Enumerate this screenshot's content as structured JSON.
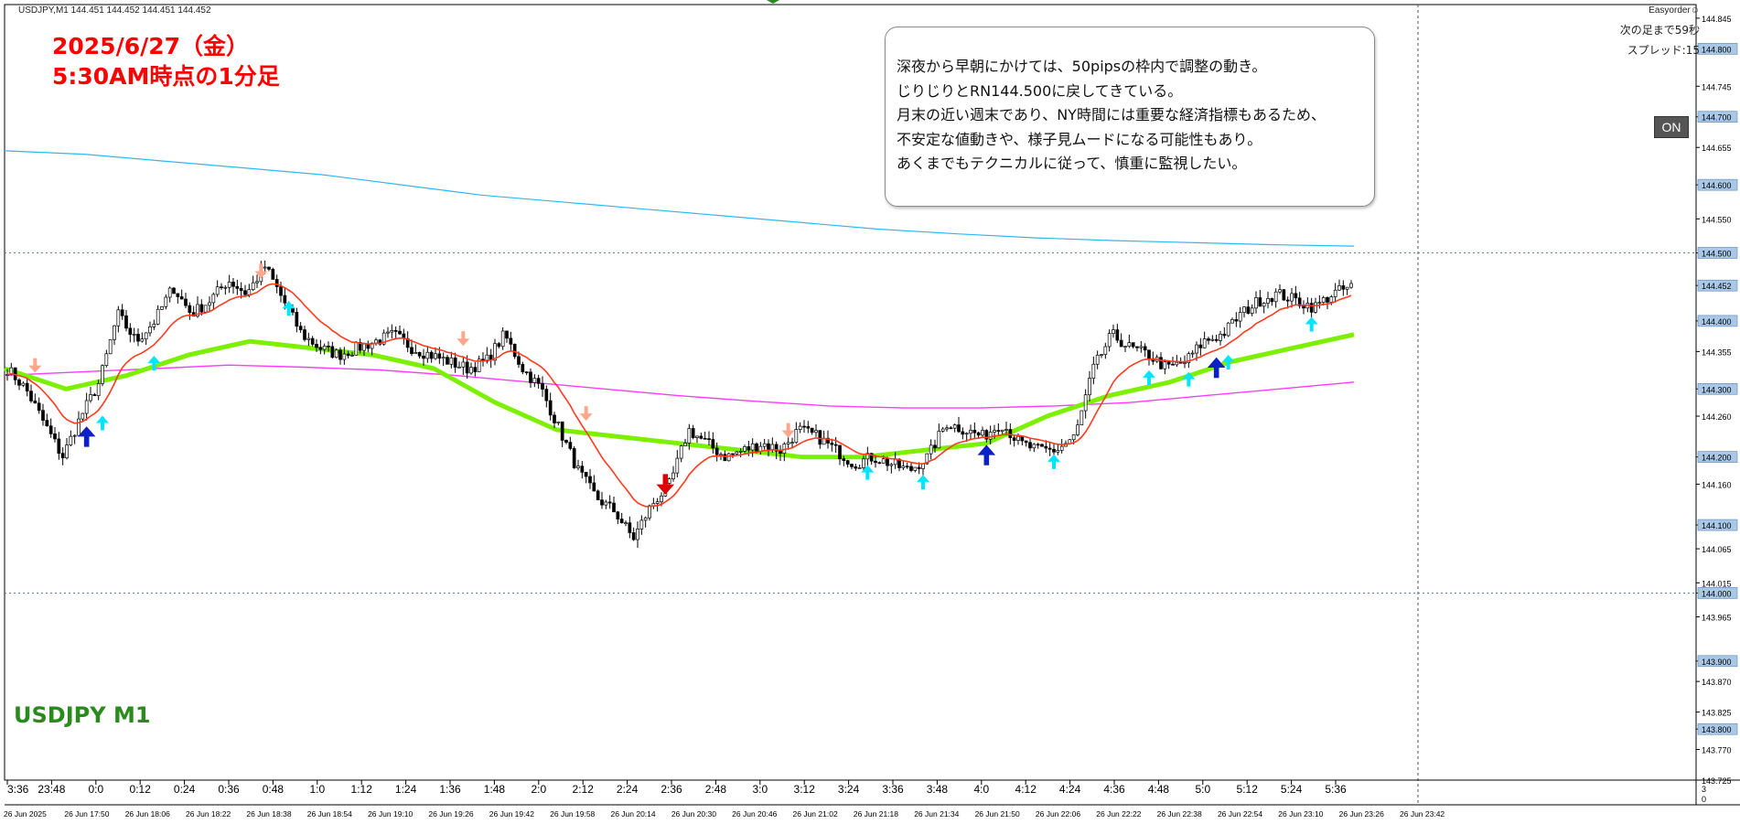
{
  "header": {
    "symbol_info": "USDJPY,M1  144.451 144.452 144.451 144.452",
    "ea_name": "Easyorder☺"
  },
  "title_line1": "2025/6/27（金）",
  "title_line2": "5:30AM時点の1分足",
  "symbol_label": "USDJPY M1",
  "info": {
    "next_bar": "次の足まで59秒",
    "spread": "スプレッド:15"
  },
  "on_button": "ON",
  "comment": [
    "深夜から早朝にかけては、50pipsの枠内で調整の動き。",
    "じりじりとRN144.500に戻してきている。",
    "月末の近い週末であり、NY時間には重要な経済指標もあるため、",
    "不安定な値動きや、様子見ムードになる可能性もあり。",
    "あくまでもテクニカルに従って、慎重に監視したい。"
  ],
  "colors": {
    "bull": "#000000",
    "red_ma": "#ff3b1f",
    "green_ma": "#7cf000",
    "magenta_ma": "#ff3cff",
    "blue_line": "#30b8f0",
    "arrow_up": "#00e5ff",
    "arrow_down": "#ffa78c",
    "arrow_up_big": "#0b20c8",
    "arrow_down_big": "#e00000"
  },
  "chart_data": {
    "type": "candlestick",
    "symbol": "USDJPY",
    "timeframe": "M1",
    "ylim": [
      143.725,
      144.865
    ],
    "y_ticks": [
      144.845,
      144.8,
      144.745,
      144.7,
      144.655,
      144.6,
      144.55,
      144.5,
      144.452,
      144.4,
      144.355,
      144.3,
      144.26,
      144.2,
      144.16,
      144.1,
      144.065,
      144.015,
      144.0,
      143.965,
      143.9,
      143.87,
      143.825,
      143.8,
      143.77,
      143.725
    ],
    "highlighted_ticks": [
      "144.800",
      "144.700",
      "144.600",
      "144.500",
      "144.452",
      "144.400",
      "144.300",
      "144.200",
      "144.100",
      "144.000",
      "143.900",
      "143.800"
    ],
    "dashed_levels": [
      144.5,
      144.0
    ],
    "x_labels_top": [
      "3:36",
      "23:48",
      "0:0",
      "0:12",
      "0:24",
      "0:36",
      "0:48",
      "1:0",
      "1:12",
      "1:24",
      "1:36",
      "1:48",
      "2:0",
      "2:12",
      "2:24",
      "2:36",
      "2:48",
      "3:0",
      "3:12",
      "3:24",
      "3:36",
      "3:48",
      "4:0",
      "4:12",
      "4:24",
      "4:36",
      "4:48",
      "5:0",
      "5:12",
      "5:24",
      "5:36"
    ],
    "x_labels_bottom": [
      "26 Jun 2025",
      "26 Jun 17:50",
      "26 Jun 18:06",
      "26 Jun 18:22",
      "26 Jun 18:38",
      "26 Jun 18:54",
      "26 Jun 19:10",
      "26 Jun 19:26",
      "26 Jun 19:42",
      "26 Jun 19:58",
      "26 Jun 20:14",
      "26 Jun 20:30",
      "26 Jun 20:46",
      "26 Jun 21:02",
      "26 Jun 21:18",
      "26 Jun 21:34",
      "26 Jun 21:50",
      "26 Jun 22:06",
      "26 Jun 22:22",
      "26 Jun 22:38",
      "26 Jun 22:54",
      "26 Jun 23:10",
      "26 Jun 23:26",
      "26 Jun 23:42"
    ],
    "subwindow_labels": [
      "3",
      "0"
    ],
    "price_path": [
      144.33,
      144.3,
      144.25,
      144.2,
      144.26,
      144.31,
      144.41,
      144.37,
      144.4,
      144.45,
      144.41,
      144.43,
      144.46,
      144.44,
      144.48,
      144.43,
      144.38,
      144.36,
      144.35,
      144.36,
      144.37,
      144.38,
      144.36,
      144.35,
      144.34,
      144.33,
      144.34,
      144.38,
      144.33,
      144.3,
      144.24,
      144.18,
      144.14,
      144.12,
      144.08,
      144.13,
      144.16,
      144.24,
      144.22,
      144.2,
      144.21,
      144.22,
      144.21,
      144.24,
      144.23,
      144.21,
      144.19,
      144.2,
      144.19,
      144.18,
      144.2,
      144.25,
      144.24,
      144.23,
      144.25,
      144.22,
      144.21,
      144.21,
      144.23,
      144.33,
      144.38,
      144.36,
      144.35,
      144.33,
      144.34,
      144.37,
      144.38,
      144.41,
      144.43,
      144.44,
      144.43,
      144.42,
      144.44,
      144.45
    ],
    "series": [
      {
        "name": "",
        "color": "#30b8f0",
        "values": [
          144.65,
          144.645,
          144.635,
          144.625,
          144.615,
          144.6,
          144.585,
          144.575,
          144.565,
          144.555,
          144.545,
          144.535,
          144.528,
          144.522,
          144.518,
          144.515,
          144.512,
          144.51
        ]
      },
      {
        "name": "",
        "color": "#ff3cff",
        "values": [
          144.32,
          144.325,
          144.33,
          144.335,
          144.332,
          144.328,
          144.32,
          144.31,
          144.3,
          144.29,
          144.282,
          144.275,
          144.272,
          144.272,
          144.275,
          144.28,
          144.29,
          144.3,
          144.31
        ]
      },
      {
        "name": "",
        "color": "#7cf000",
        "values": [
          144.33,
          144.3,
          144.32,
          144.35,
          144.37,
          144.36,
          144.35,
          144.33,
          144.28,
          144.24,
          144.23,
          144.22,
          144.21,
          144.2,
          144.2,
          144.21,
          144.22,
          144.26,
          144.29,
          144.31,
          144.34,
          144.36,
          144.38
        ]
      }
    ],
    "arrows": [
      {
        "dir": "down",
        "big": false,
        "i": 2
      },
      {
        "dir": "up",
        "big": true,
        "i": 6
      },
      {
        "dir": "up",
        "big": false,
        "i": 7
      },
      {
        "dir": "up",
        "big": false,
        "i": 11
      },
      {
        "dir": "down",
        "big": false,
        "i": 19
      },
      {
        "dir": "up",
        "big": false,
        "i": 21
      },
      {
        "dir": "down",
        "big": false,
        "i": 34
      },
      {
        "dir": "down",
        "big": false,
        "i": 43
      },
      {
        "dir": "down",
        "big": true,
        "i": 49
      },
      {
        "dir": "down",
        "big": false,
        "i": 58
      },
      {
        "dir": "up",
        "big": false,
        "i": 64
      },
      {
        "dir": "up",
        "big": false,
        "i": 68
      },
      {
        "dir": "up",
        "big": true,
        "i": 73
      },
      {
        "dir": "up",
        "big": false,
        "i": 78
      },
      {
        "dir": "up",
        "big": false,
        "i": 85
      },
      {
        "dir": "up",
        "big": false,
        "i": 88
      },
      {
        "dir": "up",
        "big": true,
        "i": 90
      },
      {
        "dir": "up",
        "big": false,
        "i": 91
      },
      {
        "dir": "up",
        "big": false,
        "i": 97
      }
    ]
  }
}
